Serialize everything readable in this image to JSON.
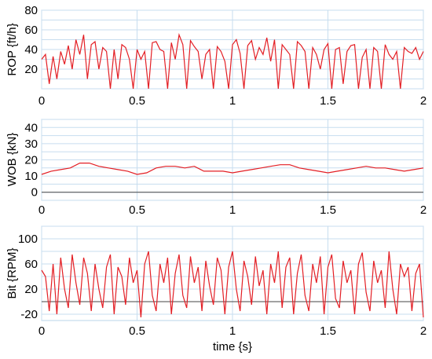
{
  "chart_data": [
    {
      "type": "line",
      "ylabel": "ROP {ft/h}",
      "xlim": [
        0,
        2
      ],
      "ylim": [
        0,
        80
      ],
      "yticks": [
        "80",
        "60",
        "40",
        "20"
      ],
      "xticks": [
        "0",
        "0.5",
        "1",
        "1.5",
        "2"
      ],
      "grid": true,
      "color": "#e31e24",
      "series": [
        {
          "x": [
            0,
            0.02,
            0.04,
            0.06,
            0.08,
            0.1,
            0.12,
            0.14,
            0.16,
            0.18,
            0.2,
            0.22,
            0.24,
            0.26,
            0.28,
            0.3,
            0.32,
            0.34,
            0.36,
            0.38,
            0.4,
            0.42,
            0.44,
            0.46,
            0.48,
            0.5,
            0.52,
            0.54,
            0.56,
            0.58,
            0.6,
            0.62,
            0.64,
            0.66,
            0.68,
            0.7,
            0.72,
            0.74,
            0.76,
            0.78,
            0.8,
            0.82,
            0.84,
            0.86,
            0.88,
            0.9,
            0.92,
            0.94,
            0.96,
            0.98,
            1,
            1.02,
            1.04,
            1.06,
            1.08,
            1.1,
            1.12,
            1.14,
            1.16,
            1.18,
            1.2,
            1.22,
            1.24,
            1.26,
            1.28,
            1.3,
            1.32,
            1.34,
            1.36,
            1.38,
            1.4,
            1.42,
            1.44,
            1.46,
            1.48,
            1.5,
            1.52,
            1.54,
            1.56,
            1.58,
            1.6,
            1.62,
            1.64,
            1.66,
            1.68,
            1.7,
            1.72,
            1.74,
            1.76,
            1.78,
            1.8,
            1.82,
            1.84,
            1.86,
            1.88,
            1.9,
            1.92,
            1.94,
            1.96,
            1.98,
            2
          ],
          "y": [
            30,
            35,
            5,
            33,
            10,
            38,
            25,
            44,
            20,
            50,
            35,
            55,
            10,
            45,
            48,
            20,
            42,
            38,
            0,
            40,
            10,
            45,
            42,
            30,
            0,
            40,
            30,
            38,
            0,
            47,
            48,
            40,
            38,
            0,
            47,
            30,
            55,
            45,
            0,
            49,
            43,
            38,
            10,
            35,
            40,
            0,
            43,
            38,
            28,
            0,
            45,
            50,
            36,
            0,
            44,
            49,
            30,
            42,
            35,
            52,
            28,
            50,
            0,
            45,
            40,
            35,
            0,
            48,
            44,
            38,
            0,
            42,
            35,
            20,
            40,
            46,
            0,
            40,
            42,
            5,
            38,
            44,
            45,
            0,
            32,
            40,
            0,
            42,
            38,
            0,
            45,
            35,
            30,
            38,
            0,
            42,
            38,
            36,
            42,
            30,
            38
          ]
        }
      ]
    },
    {
      "type": "line",
      "ylabel": "WOB {kN}",
      "xlim": [
        0,
        2
      ],
      "ylim": [
        -5,
        45
      ],
      "yticks": [
        "40",
        "30",
        "20",
        "10",
        "0"
      ],
      "xticks": [
        "0",
        "0.5",
        "1",
        "1.5",
        "2"
      ],
      "grid": true,
      "color": "#e31e24",
      "reference_line": 0,
      "series": [
        {
          "x": [
            0,
            0.05,
            0.1,
            0.15,
            0.2,
            0.25,
            0.3,
            0.35,
            0.4,
            0.45,
            0.5,
            0.55,
            0.6,
            0.65,
            0.7,
            0.75,
            0.8,
            0.85,
            0.9,
            0.95,
            1,
            1.05,
            1.1,
            1.15,
            1.2,
            1.25,
            1.3,
            1.35,
            1.4,
            1.45,
            1.5,
            1.55,
            1.6,
            1.65,
            1.7,
            1.75,
            1.8,
            1.85,
            1.9,
            1.95,
            2
          ],
          "y": [
            11,
            13,
            14,
            15,
            18,
            18,
            16,
            15,
            14,
            13,
            11,
            12,
            15,
            16,
            16,
            15,
            16,
            13,
            13,
            13,
            12,
            13,
            14,
            15,
            16,
            17,
            17,
            15,
            14,
            13,
            12,
            13,
            14,
            15,
            16,
            15,
            15,
            14,
            13,
            14,
            15
          ]
        }
      ]
    },
    {
      "type": "line",
      "ylabel": "Bit {RPM}",
      "xlim": [
        0,
        2
      ],
      "ylim": [
        -30,
        120
      ],
      "yticks": [
        "100",
        "60",
        "20",
        "-20"
      ],
      "xticks": [
        "0",
        "0.5",
        "1",
        "1.5",
        "2"
      ],
      "xlabel": "time {s}",
      "grid": true,
      "color": "#e31e24",
      "reference_line": 0,
      "series": [
        {
          "x": [
            0,
            0.02,
            0.04,
            0.06,
            0.08,
            0.1,
            0.12,
            0.14,
            0.16,
            0.18,
            0.2,
            0.22,
            0.24,
            0.26,
            0.28,
            0.3,
            0.32,
            0.34,
            0.36,
            0.38,
            0.4,
            0.42,
            0.44,
            0.46,
            0.48,
            0.5,
            0.52,
            0.54,
            0.56,
            0.58,
            0.6,
            0.62,
            0.64,
            0.66,
            0.68,
            0.7,
            0.72,
            0.74,
            0.76,
            0.78,
            0.8,
            0.82,
            0.84,
            0.86,
            0.88,
            0.9,
            0.92,
            0.94,
            0.96,
            0.98,
            1,
            1.02,
            1.04,
            1.06,
            1.08,
            1.1,
            1.12,
            1.14,
            1.16,
            1.18,
            1.2,
            1.22,
            1.24,
            1.26,
            1.28,
            1.3,
            1.32,
            1.34,
            1.36,
            1.38,
            1.4,
            1.42,
            1.44,
            1.46,
            1.48,
            1.5,
            1.52,
            1.54,
            1.56,
            1.58,
            1.6,
            1.62,
            1.64,
            1.66,
            1.68,
            1.7,
            1.72,
            1.74,
            1.76,
            1.78,
            1.8,
            1.82,
            1.84,
            1.86,
            1.88,
            1.9,
            1.92,
            1.94,
            1.96,
            1.98,
            2
          ],
          "y": [
            50,
            40,
            -15,
            60,
            -20,
            70,
            20,
            -10,
            75,
            30,
            -5,
            70,
            45,
            -15,
            60,
            20,
            -10,
            55,
            75,
            -20,
            55,
            40,
            -5,
            70,
            30,
            50,
            -25,
            60,
            80,
            10,
            -15,
            60,
            30,
            70,
            -20,
            45,
            75,
            10,
            -10,
            72,
            30,
            55,
            -15,
            65,
            25,
            -5,
            70,
            50,
            -20,
            55,
            80,
            20,
            -15,
            65,
            40,
            -5,
            72,
            25,
            50,
            -20,
            60,
            30,
            80,
            -10,
            55,
            70,
            -20,
            45,
            75,
            10,
            -15,
            60,
            30,
            72,
            -20,
            55,
            75,
            5,
            -10,
            65,
            30,
            50,
            -20,
            60,
            78,
            15,
            -15,
            65,
            30,
            50,
            -10,
            80,
            20,
            -20,
            60,
            40,
            55,
            -15,
            45,
            60,
            -25
          ]
        }
      ]
    }
  ]
}
